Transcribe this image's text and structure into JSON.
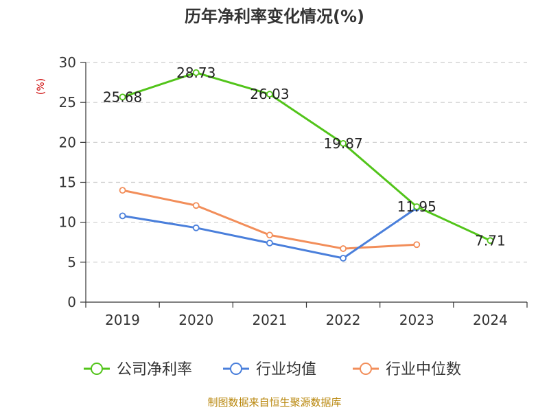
{
  "chart_data": {
    "type": "line",
    "title": "历年净利率变化情况(%)",
    "ylabel": "(%)",
    "xlabel": "",
    "categories": [
      "2019",
      "2020",
      "2021",
      "2022",
      "2023",
      "2024"
    ],
    "ylim": [
      0,
      30
    ],
    "yticks": [
      0,
      5,
      10,
      15,
      20,
      25,
      30
    ],
    "grid": true,
    "legend_position": "bottom",
    "series": [
      {
        "name": "公司净利率",
        "color": "#52c41a",
        "values": [
          25.68,
          28.73,
          26.03,
          19.87,
          11.95,
          7.71
        ],
        "labels": [
          "25.68",
          "28.73",
          "26.03",
          "19.87",
          "11.95",
          "7.71"
        ]
      },
      {
        "name": "行业均值",
        "color": "#4a7fdb",
        "values": [
          10.8,
          9.3,
          7.4,
          5.5,
          11.8,
          null
        ]
      },
      {
        "name": "行业中位数",
        "color": "#f28e5a",
        "values": [
          14.0,
          12.1,
          8.4,
          6.7,
          7.2,
          null
        ]
      }
    ],
    "source": "制图数据来自恒生聚源数据库"
  }
}
